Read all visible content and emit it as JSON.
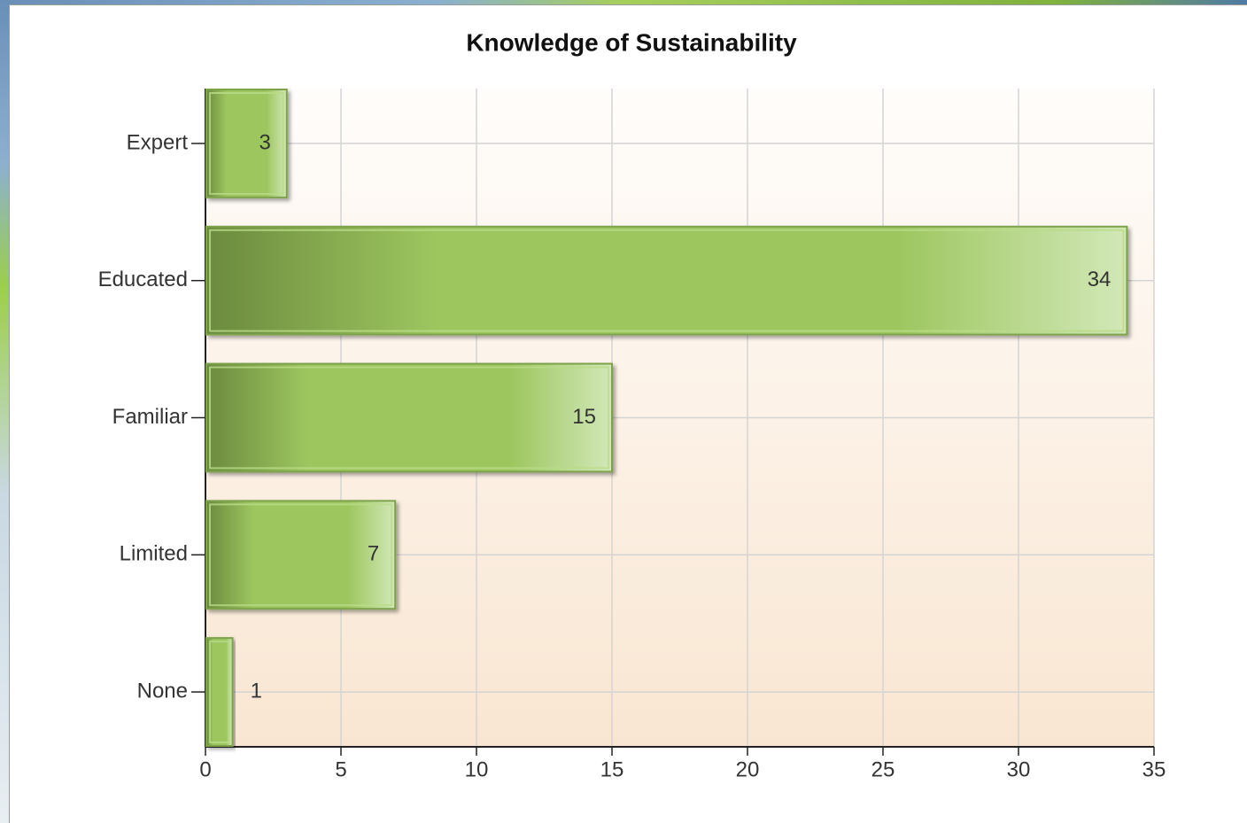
{
  "chart_data": {
    "type": "barh",
    "title": "Knowledge of Sustainability",
    "categories": [
      "Expert",
      "Educated",
      "Familiar",
      "Limited",
      "None"
    ],
    "values": [
      3,
      34,
      15,
      7,
      1
    ],
    "color": "#9dc65f",
    "xlim": [
      0,
      35
    ],
    "xticks": [
      0,
      5,
      10,
      15,
      20,
      25,
      30,
      35
    ],
    "grid": true
  }
}
